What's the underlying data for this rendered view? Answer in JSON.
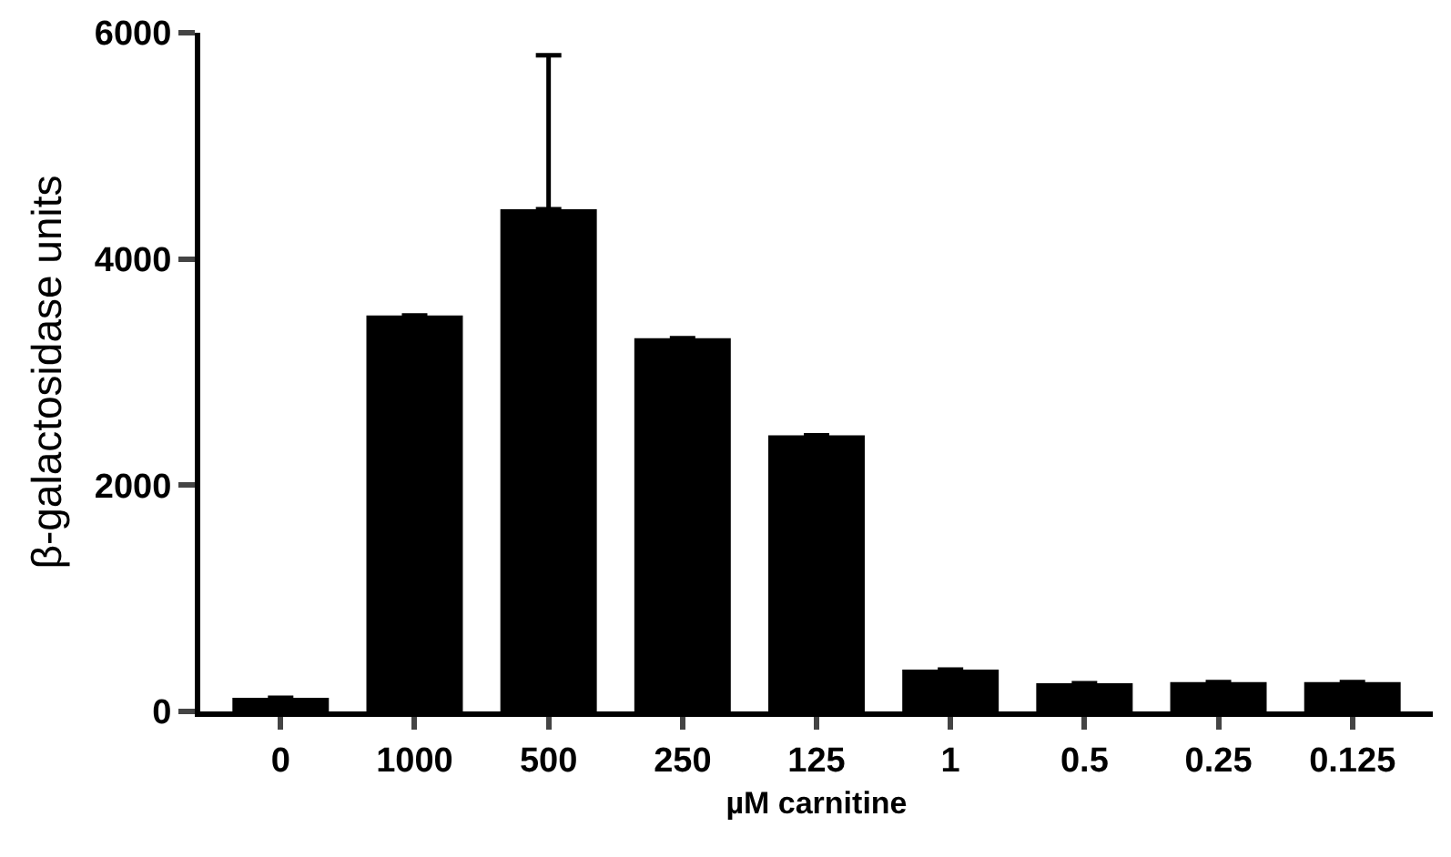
{
  "chart_data": {
    "type": "bar",
    "categories": [
      "0",
      "1000",
      "500",
      "250",
      "125",
      "1",
      "0.5",
      "0.25",
      "0.125"
    ],
    "values": [
      120,
      3500,
      4440,
      3300,
      2440,
      370,
      250,
      260,
      260
    ],
    "errors": [
      null,
      null,
      [
        4440,
        5800
      ],
      null,
      null,
      null,
      null,
      null,
      null
    ],
    "color": "#000000",
    "xlabel": "µM carnitine",
    "ylabel": "β-galactosidase units",
    "ylim": [
      0,
      6000
    ],
    "yticks": [
      0,
      2000,
      4000,
      6000
    ],
    "grid": false
  }
}
